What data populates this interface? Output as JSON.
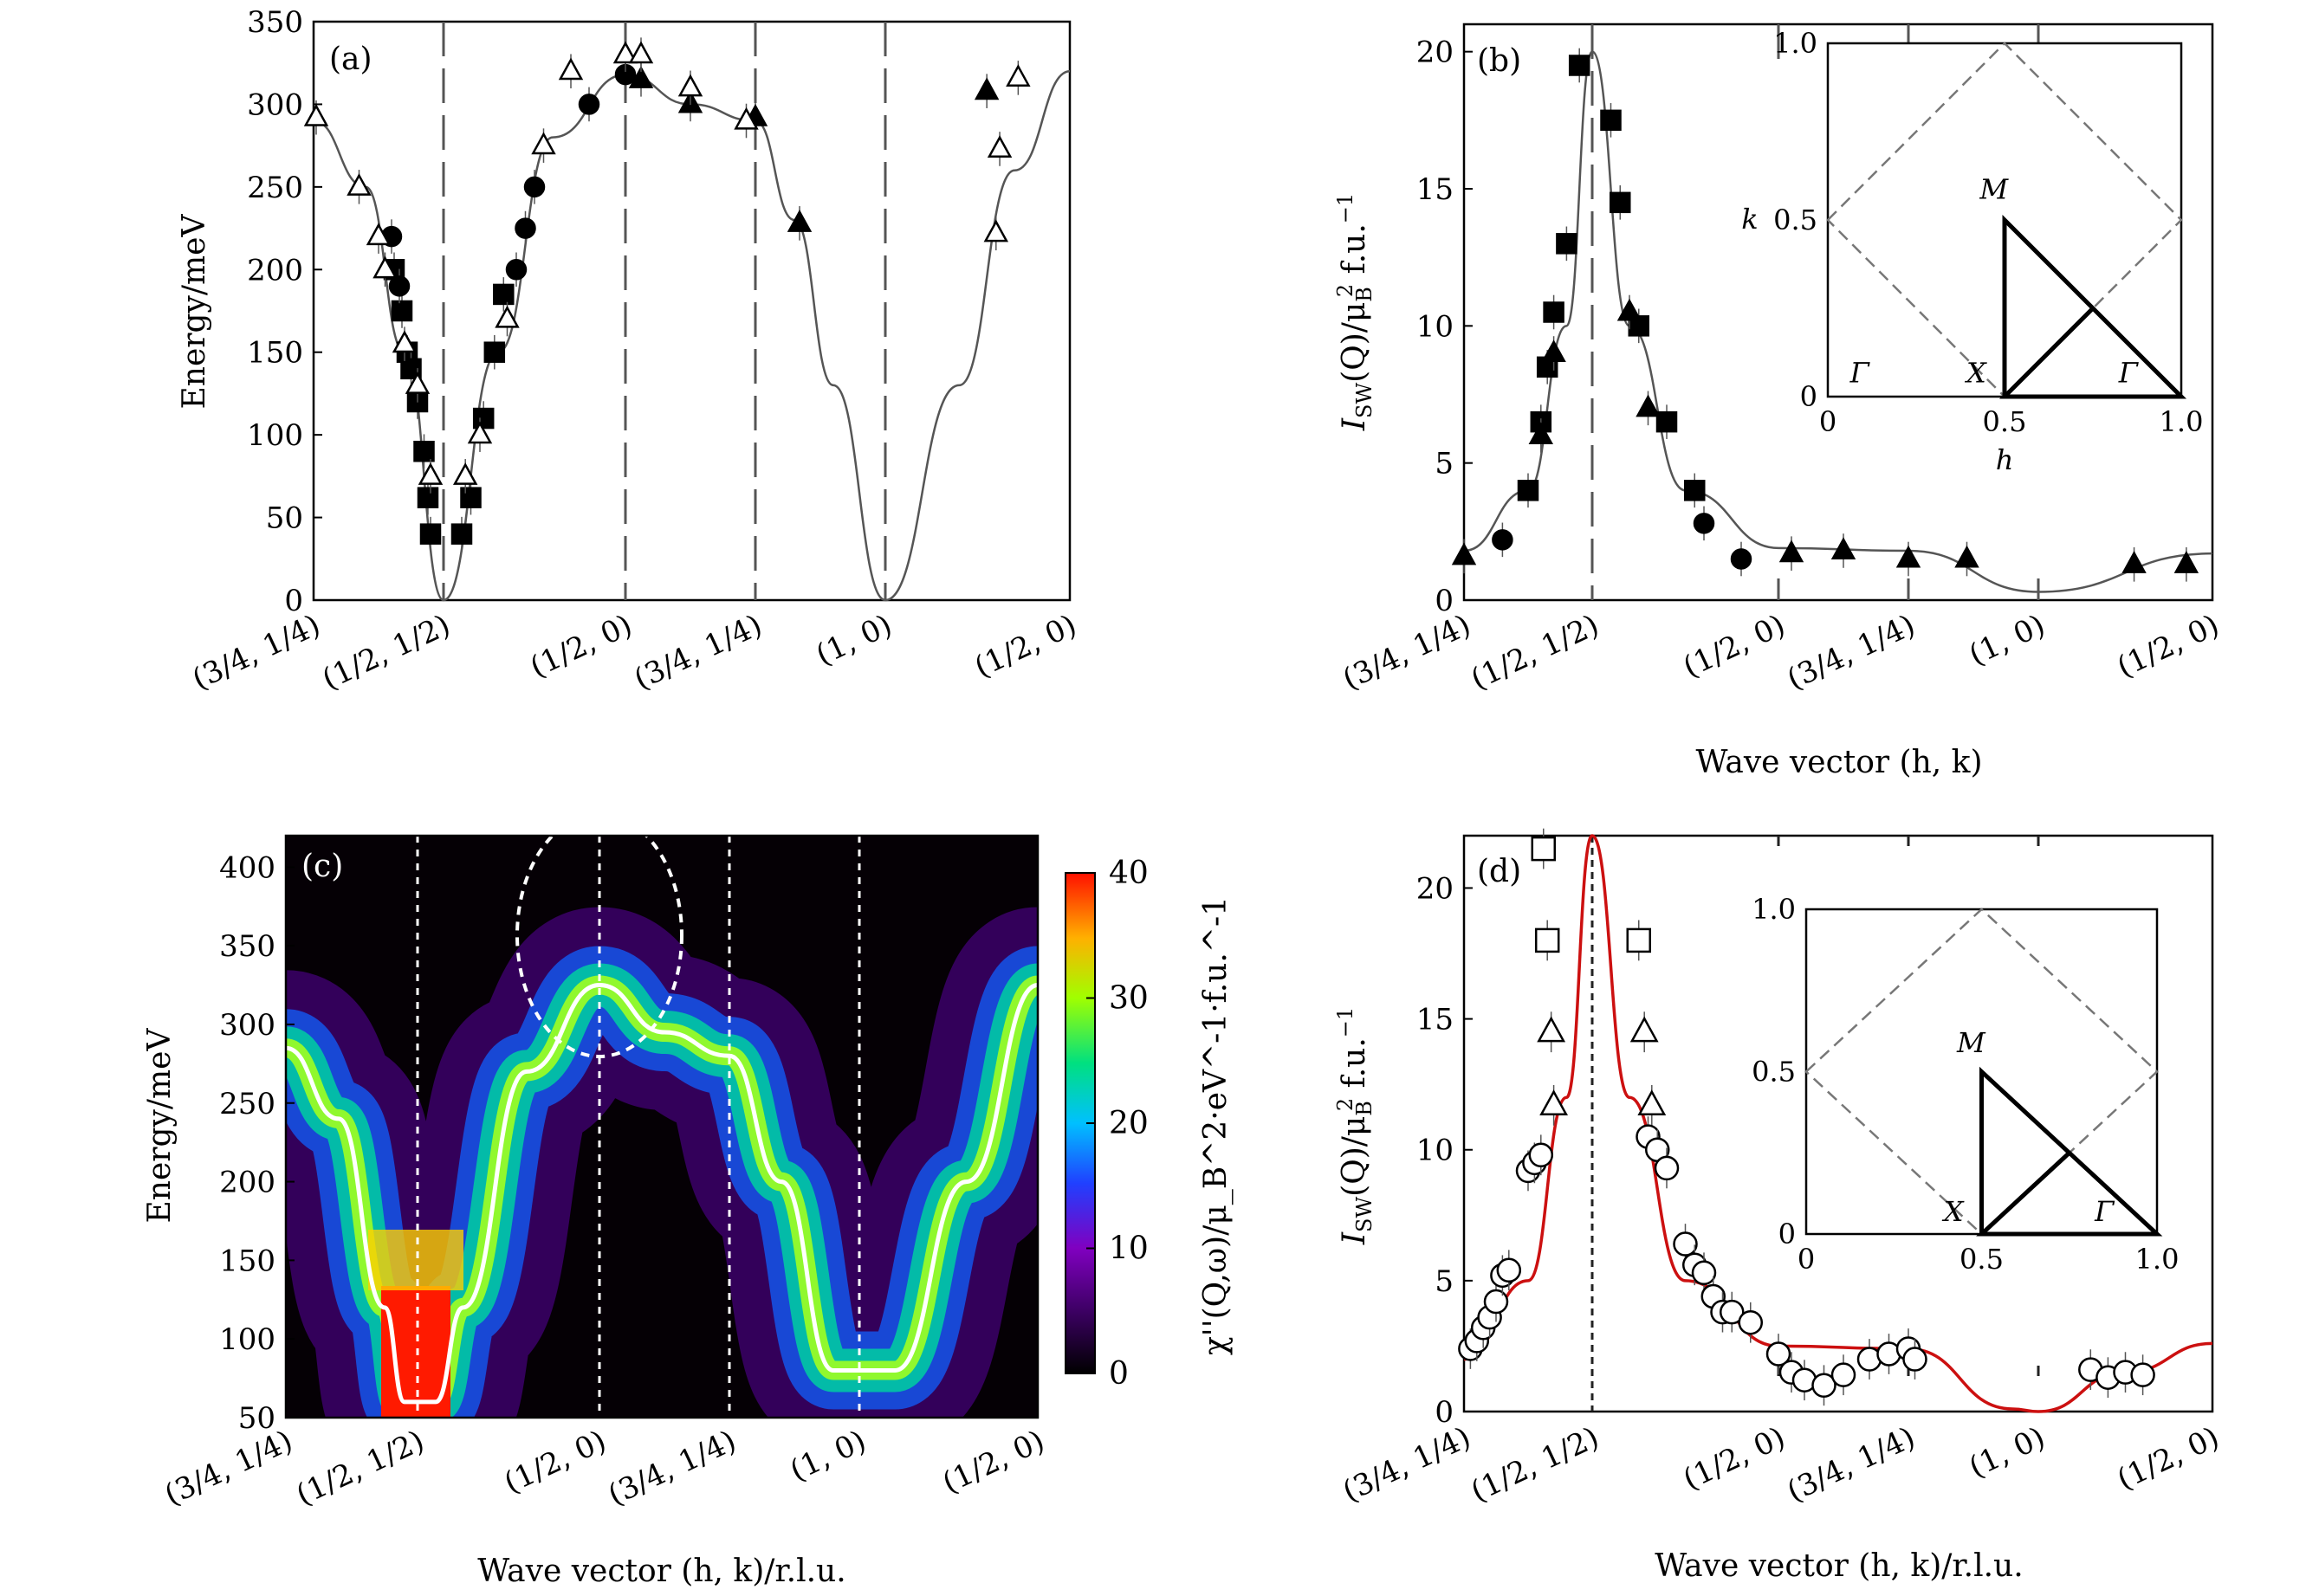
{
  "chart_data": [
    {
      "panel": "(a)",
      "type": "scatter",
      "ylabel": "Energy/meV",
      "xlabel": "",
      "ylim": [
        0,
        350
      ],
      "yticks": [
        0,
        50,
        100,
        150,
        200,
        250,
        300,
        350
      ],
      "xticklabels": [
        "(3/4, 1/4)",
        "(1/2, 1/2)",
        "(1/2, 0)",
        "(3/4, 1/4)",
        "(1, 0)",
        "(1/2, 0)"
      ],
      "path_nodes": [
        0,
        1,
        2,
        3,
        4,
        5
      ],
      "dashed_lines_at": [
        1,
        2,
        3,
        4
      ],
      "series": [
        {
          "marker": "square-filled",
          "points": [
            [
              0.62,
              200
            ],
            [
              0.68,
              175
            ],
            [
              0.72,
              150
            ],
            [
              0.75,
              140
            ],
            [
              0.8,
              120
            ],
            [
              0.85,
              90
            ],
            [
              0.88,
              62
            ],
            [
              0.9,
              40
            ],
            [
              1.1,
              40
            ],
            [
              1.15,
              62
            ],
            [
              1.22,
              110
            ],
            [
              1.28,
              150
            ],
            [
              1.33,
              185
            ]
          ]
        },
        {
          "marker": "circle-filled",
          "points": [
            [
              0.6,
              220
            ],
            [
              0.66,
              190
            ],
            [
              1.4,
              200
            ],
            [
              1.45,
              225
            ],
            [
              1.5,
              250
            ],
            [
              1.8,
              300
            ],
            [
              2.0,
              318
            ]
          ]
        },
        {
          "marker": "triangle-filled",
          "points": [
            [
              2.12,
              315
            ],
            [
              2.5,
              300
            ],
            [
              3.0,
              292
            ],
            [
              3.34,
              228
            ],
            [
              4.55,
              308
            ]
          ]
        },
        {
          "marker": "triangle-open",
          "points": [
            [
              0.02,
              292
            ],
            [
              0.35,
              250
            ],
            [
              0.5,
              220
            ],
            [
              0.55,
              200
            ],
            [
              0.7,
              155
            ],
            [
              0.8,
              130
            ],
            [
              0.9,
              75
            ],
            [
              1.12,
              75
            ],
            [
              1.2,
              100
            ],
            [
              1.35,
              170
            ],
            [
              1.55,
              275
            ],
            [
              1.7,
              320
            ],
            [
              2.0,
              330
            ],
            [
              2.12,
              330
            ],
            [
              2.5,
              310
            ],
            [
              2.93,
              290
            ],
            [
              4.6,
              222
            ],
            [
              4.62,
              273
            ],
            [
              4.72,
              316
            ]
          ]
        }
      ],
      "curve": [
        [
          0,
          290
        ],
        [
          0.4,
          250
        ],
        [
          0.7,
          150
        ],
        [
          1,
          0
        ],
        [
          1.3,
          150
        ],
        [
          1.6,
          280
        ],
        [
          2,
          318
        ],
        [
          2.5,
          300
        ],
        [
          3,
          290
        ],
        [
          3.3,
          230
        ],
        [
          3.6,
          130
        ],
        [
          4,
          0
        ],
        [
          4.4,
          130
        ],
        [
          4.7,
          260
        ],
        [
          5,
          320
        ]
      ]
    },
    {
      "panel": "(b)",
      "type": "scatter",
      "ylabel": "I_SW(Q)/μ_B^2 f.u.^-1",
      "ylabel_parts": {
        "I": "I",
        "sw": "SW",
        "paren": "(Q)/μ",
        "b": "B",
        "two": "2",
        "fu": " f.u.",
        "minus1": "−1"
      },
      "xlabel": "Wave vector (h, k)",
      "ylim": [
        0,
        21
      ],
      "yticks": [
        0,
        5,
        10,
        15,
        20
      ],
      "xticklabels": [
        "(3/4, 1/4)",
        "(1/2, 1/2)",
        "(1/2, 0)",
        "(3/4, 1/4)",
        "(1, 0)",
        "(1/2, 0)"
      ],
      "path_nodes": [
        0,
        1,
        2,
        3,
        4,
        5
      ],
      "dashed_lines_at": [
        1
      ],
      "series": [
        {
          "marker": "square-filled",
          "points": [
            [
              0.5,
              4
            ],
            [
              0.6,
              6.5
            ],
            [
              0.65,
              8.5
            ],
            [
              0.7,
              10.5
            ],
            [
              0.8,
              13
            ],
            [
              0.9,
              19.5
            ],
            [
              1.1,
              17.5
            ],
            [
              1.15,
              14.5
            ],
            [
              1.25,
              10
            ],
            [
              1.4,
              6.5
            ],
            [
              1.55,
              4
            ]
          ]
        },
        {
          "marker": "circle-filled",
          "points": [
            [
              0.3,
              2.2
            ],
            [
              1.6,
              2.8
            ],
            [
              1.8,
              1.5
            ]
          ]
        },
        {
          "marker": "triangle-filled",
          "points": [
            [
              0,
              1.6
            ],
            [
              0.6,
              6
            ],
            [
              0.7,
              9
            ],
            [
              1.2,
              10.5
            ],
            [
              1.3,
              7
            ],
            [
              2.1,
              1.7
            ],
            [
              2.5,
              1.8
            ],
            [
              3.0,
              1.5
            ],
            [
              3.45,
              1.5
            ],
            [
              4.55,
              1.3
            ],
            [
              4.85,
              1.3
            ]
          ]
        }
      ],
      "curve": [
        [
          0,
          1.8
        ],
        [
          0.5,
          4
        ],
        [
          0.8,
          10
        ],
        [
          1,
          20
        ],
        [
          1.2,
          10
        ],
        [
          1.5,
          4
        ],
        [
          2,
          1.9
        ],
        [
          3,
          1.8
        ],
        [
          4,
          0.3
        ],
        [
          5,
          1.7
        ]
      ],
      "inset": {
        "xlabel": "h",
        "ylabel": "k",
        "xticks": [
          "0",
          "0.5",
          "1.0"
        ],
        "yticks": [
          "0",
          "0.5",
          "1.0"
        ],
        "labels": [
          "M",
          "X",
          "Γ",
          "Γ"
        ],
        "diamond": [
          [
            0,
            0.5
          ],
          [
            0.5,
            1
          ],
          [
            1,
            0.5
          ],
          [
            0.5,
            0
          ]
        ],
        "path": [
          [
            0.5,
            0
          ],
          [
            0.5,
            0.5
          ],
          [
            1,
            0
          ],
          [
            0.5,
            0
          ],
          [
            0.75,
            0.25
          ]
        ]
      }
    },
    {
      "panel": "(c)",
      "type": "heatmap",
      "ylabel": "Energy/meV",
      "xlabel": "Wave vector (h, k)/r.l.u.",
      "ylim": [
        50,
        420
      ],
      "yticks": [
        50,
        100,
        150,
        200,
        250,
        300,
        350,
        400
      ],
      "xticklabels": [
        "(3/4, 1/4)",
        "(1/2, 1/2)",
        "(1/2, 0)",
        "(3/4, 1/4)",
        "(1, 0)",
        "(1/2, 0)"
      ],
      "path_nodes": [
        0,
        1,
        2,
        3,
        4,
        5
      ],
      "colorbar": {
        "label": "χ''(Q,ω)/μ_B^2·eV^-1·f.u.^-1",
        "ticks": [
          0,
          10,
          20,
          30,
          40
        ],
        "range": [
          0,
          40
        ]
      },
      "curve": [
        [
          0,
          285
        ],
        [
          0.4,
          240
        ],
        [
          0.75,
          120
        ],
        [
          0.9,
          60
        ],
        [
          1.1,
          60
        ],
        [
          1.25,
          120
        ],
        [
          1.6,
          270
        ],
        [
          2,
          325
        ],
        [
          2.5,
          295
        ],
        [
          3,
          280
        ],
        [
          3.4,
          200
        ],
        [
          3.8,
          80
        ],
        [
          4.2,
          80
        ],
        [
          4.6,
          200
        ],
        [
          5,
          325
        ]
      ]
    },
    {
      "panel": "(d)",
      "type": "scatter",
      "ylabel": "I_SW(Q)/μ_B^2 f.u.^-1",
      "xlabel": "Wave vector (h, k)/r.l.u.",
      "ylim": [
        0,
        22
      ],
      "yticks": [
        0,
        5,
        10,
        15,
        20
      ],
      "xticklabels": [
        "(3/4, 1/4)",
        "(1/2, 1/2)",
        "(1/2, 0)",
        "(3/4, 1/4)",
        "(1, 0)",
        "(1/2, 0)"
      ],
      "path_nodes": [
        0,
        1,
        2,
        3,
        4,
        5
      ],
      "series": [
        {
          "marker": "square-open",
          "points": [
            [
              0.62,
              21.5
            ],
            [
              0.65,
              18
            ],
            [
              1.25,
              18
            ]
          ]
        },
        {
          "marker": "triangle-open",
          "points": [
            [
              0.68,
              14.5
            ],
            [
              0.7,
              11.7
            ],
            [
              1.28,
              14.5
            ],
            [
              1.32,
              11.7
            ]
          ]
        },
        {
          "marker": "circle-open",
          "points": [
            [
              0.05,
              2.4
            ],
            [
              0.1,
              2.7
            ],
            [
              0.15,
              3.2
            ],
            [
              0.2,
              3.6
            ],
            [
              0.25,
              4.2
            ],
            [
              0.3,
              5.2
            ],
            [
              0.35,
              5.4
            ],
            [
              0.5,
              9.2
            ],
            [
              0.55,
              9.5
            ],
            [
              0.6,
              9.8
            ],
            [
              1.3,
              10.5
            ],
            [
              1.35,
              10
            ],
            [
              1.4,
              9.3
            ],
            [
              1.5,
              6.4
            ],
            [
              1.55,
              5.6
            ],
            [
              1.6,
              5.3
            ],
            [
              1.65,
              4.4
            ],
            [
              1.7,
              3.8
            ],
            [
              1.75,
              3.8
            ],
            [
              1.85,
              3.4
            ],
            [
              2.0,
              2.2
            ],
            [
              2.1,
              1.5
            ],
            [
              2.2,
              1.2
            ],
            [
              2.35,
              1.0
            ],
            [
              2.5,
              1.4
            ],
            [
              2.7,
              2.0
            ],
            [
              2.85,
              2.2
            ],
            [
              3.0,
              2.4
            ],
            [
              3.05,
              2.0
            ],
            [
              4.3,
              1.6
            ],
            [
              4.4,
              1.3
            ],
            [
              4.5,
              1.5
            ],
            [
              4.6,
              1.4
            ]
          ]
        }
      ],
      "curve": [
        [
          0,
          2
        ],
        [
          0.5,
          5
        ],
        [
          0.8,
          12
        ],
        [
          1,
          22
        ],
        [
          1.2,
          12
        ],
        [
          1.5,
          5
        ],
        [
          2,
          2.5
        ],
        [
          3,
          2.4
        ],
        [
          3.8,
          0.1
        ],
        [
          4,
          0
        ],
        [
          4.5,
          1.5
        ],
        [
          5,
          2.6
        ]
      ],
      "inset": {
        "xticks": [
          "0",
          "0.5",
          "1.0"
        ],
        "yticks": [
          "0",
          "0.5",
          "1.0"
        ],
        "labels": [
          "M",
          "X",
          "Γ"
        ],
        "diamond": [
          [
            0,
            0.5
          ],
          [
            0.5,
            1
          ],
          [
            1,
            0.5
          ],
          [
            0.5,
            0
          ]
        ],
        "path": [
          [
            0.5,
            0
          ],
          [
            0.5,
            0.5
          ],
          [
            1,
            0
          ],
          [
            0.5,
            0
          ],
          [
            0.75,
            0.25
          ]
        ]
      }
    }
  ]
}
